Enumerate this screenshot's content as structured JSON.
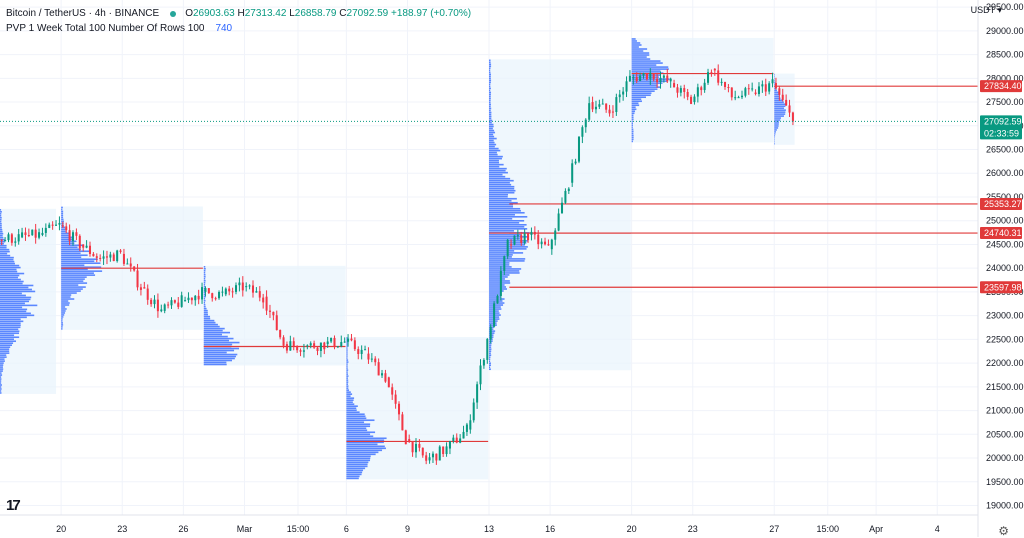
{
  "header": {
    "symbol": "Bitcoin / TetherUS · 4h · BINANCE",
    "open": "26903.63",
    "high": "27313.42",
    "low": "26858.79",
    "close": "27092.59",
    "change": "+188.97 (+0.70%)",
    "indicator": "PVP 1 Week Total 100 Number Of Rows 100",
    "indicator_value": "740",
    "currency": "USDT"
  },
  "price_labels": {
    "current_price": "27092.59",
    "countdown": "02:33:59",
    "levels": [
      "27834.40",
      "25353.27",
      "24740.31",
      "23597.98"
    ]
  },
  "colors": {
    "up": "#089981",
    "down": "#f23645",
    "profile": "#2962ff",
    "poc": "#e03a3a",
    "box": "#e8f3fc",
    "current": "#089981"
  },
  "icons": {
    "logo": "tradingview-logo-icon",
    "settings": "gear-icon"
  },
  "chart_data": {
    "type": "candlestick",
    "ylim": [
      18800,
      29650
    ],
    "y_ticks": [
      29500,
      29000,
      28500,
      28000,
      27500,
      27000,
      26500,
      26000,
      25500,
      25000,
      24500,
      24000,
      23500,
      23000,
      22500,
      22000,
      21500,
      21000,
      20500,
      20000,
      19500,
      19000
    ],
    "x_ticks": [
      {
        "label": "20",
        "date": "2023-02-20"
      },
      {
        "label": "23",
        "date": "2023-02-23"
      },
      {
        "label": "26",
        "date": "2023-02-26"
      },
      {
        "label": "Mar",
        "date": "2023-03-01"
      },
      {
        "label": "15:00",
        "date": "2023-03-03 15:00"
      },
      {
        "label": "6",
        "date": "2023-03-06"
      },
      {
        "label": "9",
        "date": "2023-03-09"
      },
      {
        "label": "13",
        "date": "2023-03-13"
      },
      {
        "label": "16",
        "date": "2023-03-16"
      },
      {
        "label": "20",
        "date": "2023-03-20"
      },
      {
        "label": "23",
        "date": "2023-03-23"
      },
      {
        "label": "27",
        "date": "2023-03-27"
      },
      {
        "label": "15:00",
        "date": "2023-03-29 15:00"
      },
      {
        "label": "Apr",
        "date": "2023-04-01"
      },
      {
        "label": "4",
        "date": "2023-04-04"
      }
    ],
    "x_range": [
      "2023-02-17",
      "2023-04-06"
    ],
    "price_path": [
      {
        "date": "2023-02-17",
        "price": 24600
      },
      {
        "date": "2023-02-18",
        "price": 24650
      },
      {
        "date": "2023-02-19",
        "price": 24700
      },
      {
        "date": "2023-02-20",
        "price": 24900
      },
      {
        "date": "2023-02-21",
        "price": 24500
      },
      {
        "date": "2023-02-22",
        "price": 24200
      },
      {
        "date": "2023-02-23",
        "price": 24300
      },
      {
        "date": "2023-02-24",
        "price": 23600
      },
      {
        "date": "2023-02-25",
        "price": 23100
      },
      {
        "date": "2023-02-26",
        "price": 23300
      },
      {
        "date": "2023-02-27",
        "price": 23500
      },
      {
        "date": "2023-02-28",
        "price": 23450
      },
      {
        "date": "2023-03-01",
        "price": 23600
      },
      {
        "date": "2023-03-02",
        "price": 23400
      },
      {
        "date": "2023-03-03",
        "price": 22400
      },
      {
        "date": "2023-03-04",
        "price": 22350
      },
      {
        "date": "2023-03-05",
        "price": 22400
      },
      {
        "date": "2023-03-06",
        "price": 22450
      },
      {
        "date": "2023-03-07",
        "price": 22200
      },
      {
        "date": "2023-03-08",
        "price": 21700
      },
      {
        "date": "2023-03-09",
        "price": 20400
      },
      {
        "date": "2023-03-10",
        "price": 19950
      },
      {
        "date": "2023-03-11",
        "price": 20200
      },
      {
        "date": "2023-03-12",
        "price": 20600
      },
      {
        "date": "2023-03-13",
        "price": 22500
      },
      {
        "date": "2023-03-14",
        "price": 24500
      },
      {
        "date": "2023-03-15",
        "price": 24700
      },
      {
        "date": "2023-03-16",
        "price": 24400
      },
      {
        "date": "2023-03-17",
        "price": 25800
      },
      {
        "date": "2023-03-18",
        "price": 27500
      },
      {
        "date": "2023-03-19",
        "price": 27300
      },
      {
        "date": "2023-03-20",
        "price": 28000
      },
      {
        "date": "2023-03-21",
        "price": 28100
      },
      {
        "date": "2023-03-22",
        "price": 27900
      },
      {
        "date": "2023-03-23",
        "price": 27500
      },
      {
        "date": "2023-03-24",
        "price": 28200
      },
      {
        "date": "2023-03-25",
        "price": 27600
      },
      {
        "date": "2023-03-26",
        "price": 27700
      },
      {
        "date": "2023-03-27",
        "price": 27900
      },
      {
        "date": "2023-03-28",
        "price": 27092.59
      }
    ],
    "volume_profiles": [
      {
        "start": "2023-02-17",
        "end": "2023-02-19 18:00",
        "low": 21350,
        "high": 25250
      },
      {
        "start": "2023-02-20",
        "end": "2023-02-26 23:00",
        "low": 22700,
        "high": 25300,
        "poc": 24000
      },
      {
        "start": "2023-02-27",
        "end": "2023-03-05 23:00",
        "low": 21950,
        "high": 24050,
        "poc": 22350
      },
      {
        "start": "2023-03-06",
        "end": "2023-03-12 23:00",
        "low": 19550,
        "high": 22550,
        "poc": 20350
      },
      {
        "start": "2023-03-13",
        "end": "2023-03-19 23:00",
        "low": 21850,
        "high": 28400,
        "poc": 24740.31
      },
      {
        "start": "2023-03-20",
        "end": "2023-03-26 23:00",
        "low": 26650,
        "high": 28850,
        "poc": 28100
      },
      {
        "start": "2023-03-27",
        "end": "2023-03-28",
        "low": 26600,
        "high": 28100
      }
    ],
    "levels": [
      27834.4,
      25353.27,
      24740.31,
      23597.98
    ],
    "current_price": 27092.59
  }
}
